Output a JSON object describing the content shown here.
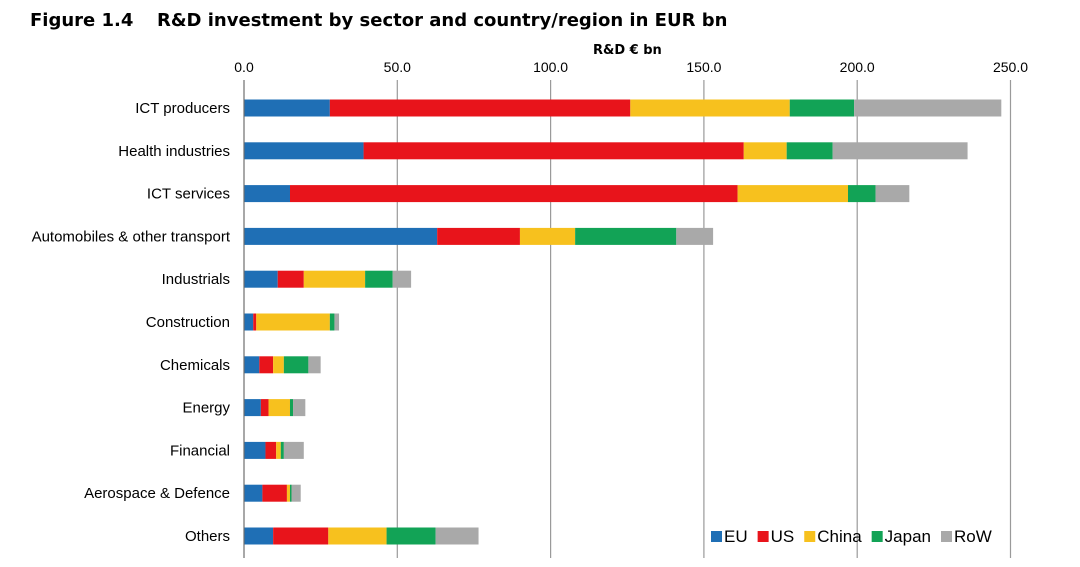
{
  "figure": {
    "number": "Figure 1.4",
    "title": "R&D investment by sector and country/region in EUR bn"
  },
  "chart_data": {
    "type": "bar",
    "orientation": "horizontal",
    "stacked": true,
    "unit_label": "R&D € bn",
    "xlim": [
      0,
      250
    ],
    "ticks": [
      0,
      50,
      100,
      150,
      200,
      250
    ],
    "tick_labels": [
      "0.0",
      "50.0",
      "100.0",
      "150.0",
      "200.0",
      "250.0"
    ],
    "grid": "vertical",
    "legend_position": "bottom-right",
    "categories": [
      "ICT producers",
      "Health industries",
      "ICT services",
      "Automobiles & other transport",
      "Industrials",
      "Construction",
      "Chemicals",
      "Energy",
      "Financial",
      "Aerospace & Defence",
      "Others"
    ],
    "series": [
      {
        "name": "EU",
        "color": "#1f6fb5",
        "values": [
          28,
          39,
          15,
          63,
          11,
          3,
          5,
          5.5,
          7,
          6,
          9.5
        ]
      },
      {
        "name": "US",
        "color": "#e8141b",
        "values": [
          98,
          124,
          146,
          27,
          8.5,
          1,
          4.5,
          2.5,
          3.5,
          8,
          18
        ]
      },
      {
        "name": "China",
        "color": "#f7c11e",
        "values": [
          52,
          14,
          36,
          18,
          20,
          24,
          3.5,
          7,
          1.5,
          1,
          19
        ]
      },
      {
        "name": "Japan",
        "color": "#12a356",
        "values": [
          21,
          15,
          9,
          33,
          9,
          1.5,
          8,
          1,
          1,
          0.5,
          16
        ]
      },
      {
        "name": "RoW",
        "color": "#a9a9a9",
        "values": [
          48,
          44,
          11,
          12,
          6,
          1.5,
          4,
          4,
          6.5,
          3,
          14
        ]
      }
    ]
  }
}
